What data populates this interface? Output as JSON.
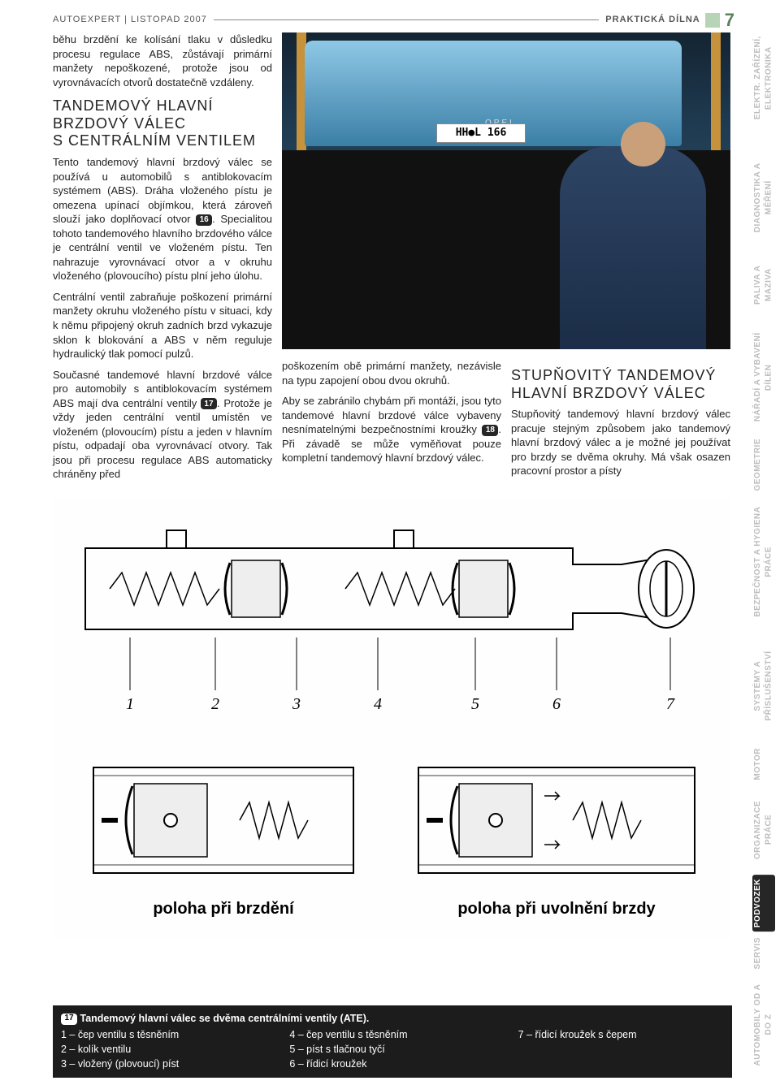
{
  "header": {
    "magazine": "AUTOEXPERT",
    "issue": "LISTOPAD 2007",
    "section": "PRAKTICKÁ DÍLNA",
    "page_number": "7"
  },
  "article": {
    "intro_para": "běhu brzdění ke kolísání tlaku v důsledku procesu regulace ABS, zůstávají primární manžety nepoškozené, protože jsou od vyrovnávacích otvorů dostatečně vzdáleny.",
    "h1": "TANDEMOVÝ HLAVNÍ BRZDOVÝ VÁLEC S CENTRÁLNÍM VENTILEM",
    "p2a": "Tento tandemový hlavní brzdový válec se používá u automobilů s antiblokovacím systémem (ABS). Dráha vloženého pístu je omezena upínací objímkou, která zároveň slouží jako doplňovací otvor ",
    "ref16": "16",
    "p2b": ". Specialitou tohoto tandemového hlavního brzdového válce je centrální ventil ve vloženém pístu. Ten nahrazuje vyrovnávací otvor a v okruhu vloženého (plovoucího) pístu plní jeho úlohu.",
    "p3": "Centrální ventil zabraňuje poškození primární manžety okruhu vloženého pístu v situaci, kdy k němu připojený okruh zadních brzd vykazuje sklon k blokování a ABS v něm reguluje hydraulický tlak pomocí pulzů.",
    "p4a": "Současné tandemové hlavní brzdové válce pro automobily s antiblokovacím systémem ABS mají dva centrální ventily ",
    "ref17": "17",
    "p4b": ". Protože je vždy jeden centrální ventil umístěn ve vloženém (plovoucím) pístu a jeden v hlavním pístu, odpadají oba vyrovnávací otvory. Tak jsou při procesu regulace ABS automaticky chráněny před",
    "p5": "poškozením obě primární manžety, nezávisle na typu zapojení obou dvou okruhů.",
    "p6a": "Aby se zabránilo chybám při montáži, jsou tyto tandemové hlavní brzdové válce vybaveny nesnímatelnými bezpečnostními kroužky ",
    "ref18": "18",
    "p6b": ". Při závadě se může vyměňovat pouze kompletní tandemový hlavní brzdový válec.",
    "h2": "STUPŇOVITÝ TANDEMOVÝ HLAVNÍ BRZDOVÝ VÁLEC",
    "p7": "Stupňovitý tandemový hlavní brzdový válec pracuje stejným způsobem jako tandemový hlavní brzdový válec a je možné jej používat pro brzdy se dvěma okruhy. Má však osazen pracovní prostor a písty"
  },
  "photo": {
    "plate": "HH●L 166",
    "brand": "OPEL"
  },
  "diagram": {
    "top_numbers": [
      "1",
      "2",
      "3",
      "4",
      "5",
      "6",
      "7"
    ],
    "caption_left": "poloha při brzdění",
    "caption_right": "poloha při uvolnění brzdy"
  },
  "legend": {
    "ref": "17",
    "title": "Tandemový hlavní válec se dvěma centrálními ventily (ATE).",
    "items_col1": [
      "1 – čep ventilu s těsněním",
      "2 – kolík ventilu",
      "3 – vložený (plovoucí) píst"
    ],
    "items_col2": [
      "4 – čep ventilu s těsněním",
      "5 – píst s tlačnou tyčí",
      "6 – řídicí kroužek"
    ],
    "items_col3": [
      "7 – řídicí kroužek s čepem"
    ]
  },
  "side_tabs": [
    {
      "label": "ELEKTR. ZAŘÍZENÍ, ELEKTRONIKA",
      "active": false
    },
    {
      "label": "DIAGNOSTIKA A MĚŘENÍ",
      "active": false
    },
    {
      "label": "PALIVA A MAZIVA",
      "active": false
    },
    {
      "label": "NÁŘADÍ A VYBAVENÍ DÍLEN",
      "active": false
    },
    {
      "label": "GEOMETRIE",
      "active": false
    },
    {
      "label": "BEZPEČNOST A HYGIENA PRÁCE",
      "active": false
    },
    {
      "label": "SYSTÉMY A PŘÍSLUŠENSTVÍ",
      "active": false
    },
    {
      "label": "MOTOR",
      "active": false
    },
    {
      "label": "ORGANIZACE PRÁCE",
      "active": false
    },
    {
      "label": "PODVOZEK",
      "active": true
    },
    {
      "label": "SERVIS",
      "active": false
    },
    {
      "label": "AUTOMOBILY OD A DO Z",
      "active": false
    }
  ]
}
